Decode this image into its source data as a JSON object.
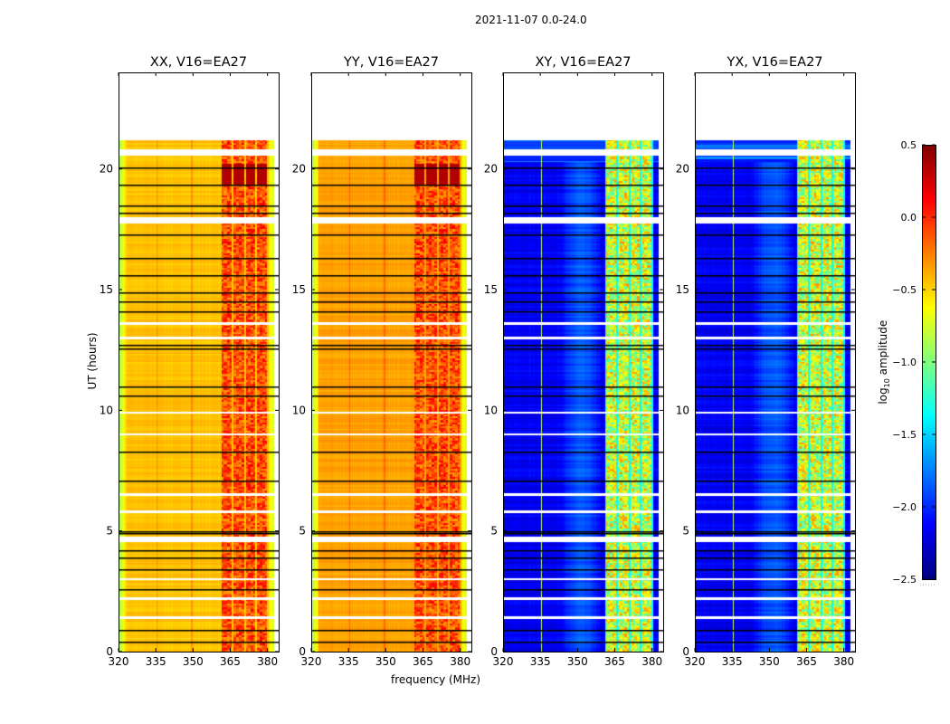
{
  "chart_data": {
    "type": "heatmap",
    "title": "2021-11-07 0.0-24.0",
    "xlabel": "frequency (MHz)",
    "ylabel": "UT (hours)",
    "xlim": [
      320,
      384.5
    ],
    "ylim": [
      0,
      24
    ],
    "xticks": [
      320,
      335,
      350,
      365,
      380
    ],
    "yticks": [
      0,
      5,
      10,
      15,
      20
    ],
    "data_time_range": [
      0,
      21.2
    ],
    "panels": [
      {
        "title": "XX, V16=EA27",
        "kind": "parallel",
        "base_level": -0.45
      },
      {
        "title": "YY, V16=EA27",
        "kind": "parallel",
        "base_level": -0.35
      },
      {
        "title": "XY, V16=EA27",
        "kind": "cross",
        "base_level": -2.15
      },
      {
        "title": "YX, V16=EA27",
        "kind": "cross",
        "base_level": -2.15
      }
    ],
    "rfi_bands_mhz": [
      [
        361.5,
        365.5
      ],
      [
        366.3,
        370.6
      ],
      [
        371.3,
        375.2
      ],
      [
        375.9,
        379.8
      ]
    ],
    "flagged_gap_hours": [
      [
        20.55,
        20.8
      ],
      [
        17.75,
        18.0
      ],
      [
        13.55,
        13.65
      ],
      [
        12.95,
        13.05
      ],
      [
        9.85,
        9.95
      ],
      [
        8.95,
        9.05
      ],
      [
        6.45,
        6.55
      ],
      [
        5.75,
        5.85
      ],
      [
        4.55,
        4.75
      ],
      [
        2.95,
        3.05
      ],
      [
        2.15,
        2.25
      ],
      [
        1.35,
        1.45
      ]
    ],
    "flagged_line_hours": [
      20.05,
      19.35,
      18.5,
      18.2,
      17.3,
      16.3,
      15.6,
      14.9,
      14.5,
      14.1,
      12.7,
      12.55,
      11.0,
      10.6,
      8.3,
      7.1,
      5.0,
      4.9,
      4.2,
      3.9,
      3.4,
      2.6,
      0.9,
      0.4
    ],
    "colorbar": {
      "label": "log10 amplitude",
      "label_main": "log",
      "label_sub": "10",
      "label_rest": " amplitude",
      "range": [
        -2.5,
        0.5
      ],
      "colormap": "jet",
      "ticks": [
        "0.5",
        "0.0",
        "−0.5",
        "−1.0",
        "−1.5",
        "−2.0",
        "−2.5"
      ]
    }
  }
}
